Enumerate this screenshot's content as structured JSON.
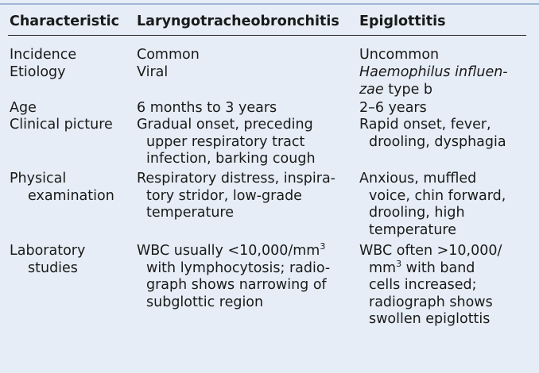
{
  "headers": [
    "Characteristic",
    "Laryngotracheobronchitis",
    "Epiglottitis"
  ],
  "rows": [
    {
      "characteristic": [
        "Incidence"
      ],
      "ltb": [
        "Common"
      ],
      "epi": [
        "Uncommon"
      ]
    },
    {
      "characteristic": [
        "Etiology"
      ],
      "ltb": [
        "Viral"
      ],
      "epi_italic_1": "Haemophilus influen-",
      "epi_italic_2": "zae",
      "epi_rest_2": " type b"
    },
    {
      "characteristic": [
        "Age"
      ],
      "ltb": [
        "6 months to 3 years"
      ],
      "epi": [
        "2–6 years"
      ]
    },
    {
      "characteristic": [
        "Clinical picture"
      ],
      "ltb": [
        "Gradual onset, preceding",
        "upper respiratory tract",
        "infection, barking cough"
      ],
      "epi": [
        "Rapid onset, fever,",
        "drooling, dysphagia"
      ]
    },
    {
      "characteristic": [
        "Physical",
        "examination"
      ],
      "ltb": [
        "Respiratory distress, inspira-",
        "tory stridor, low-grade",
        "temperature"
      ],
      "epi": [
        "Anxious, muffled",
        "voice, chin forward,",
        "drooling, high",
        "temperature"
      ]
    },
    {
      "characteristic": [
        "Laboratory",
        "studies"
      ],
      "ltb_1_pre": "WBC usually <10,000/mm",
      "ltb_1_sup": "3",
      "ltb": [
        "with lymphocytosis; radio-",
        "graph shows narrowing of",
        "subglottic region"
      ],
      "epi_1": "WBC often >10,000/",
      "epi_2_pre": "mm",
      "epi_2_sup": "3",
      "epi_2_post": " with band",
      "epi": [
        "cells increased;",
        "radiograph shows",
        "swollen epiglottis"
      ]
    }
  ]
}
